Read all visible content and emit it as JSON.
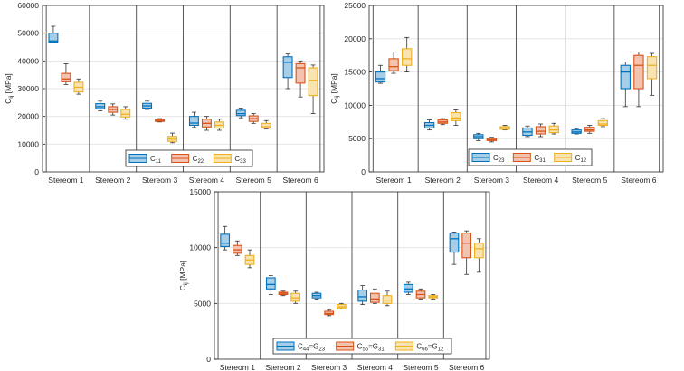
{
  "colors": {
    "blue": "#0072BD",
    "orange": "#D95319",
    "yellow": "#EDB120",
    "axis": "#262626",
    "grid": "#e6e6e6",
    "divider": "#595959"
  },
  "chart_data": [
    {
      "type": "box",
      "ylabel": "C_ij [MPa]",
      "ylim": [
        0,
        60000
      ],
      "yticks": [
        0,
        10000,
        20000,
        30000,
        40000,
        50000,
        60000
      ],
      "categories": [
        "Stereom 1",
        "Stereom 2",
        "Stereom 3",
        "Stereom 4",
        "Stereom 5",
        "Stereom 6"
      ],
      "grid": "horizontal",
      "legend_placement": "bottom-center",
      "series": [
        {
          "name": "C11",
          "label_base": "C",
          "label_sub": "11",
          "color": "#0072BD",
          "boxes": [
            {
              "min": 46500,
              "q1": 46800,
              "median": 47200,
              "q3": 50000,
              "max": 52500
            },
            {
              "min": 22000,
              "q1": 22800,
              "median": 23500,
              "q3": 24600,
              "max": 25500
            },
            {
              "min": 22500,
              "q1": 23000,
              "median": 23800,
              "q3": 24700,
              "max": 25500
            },
            {
              "min": 16000,
              "q1": 16800,
              "median": 17600,
              "q3": 20000,
              "max": 21500
            },
            {
              "min": 19500,
              "q1": 20300,
              "median": 21000,
              "q3": 22200,
              "max": 23000
            },
            {
              "min": 30000,
              "q1": 34000,
              "median": 39500,
              "q3": 41500,
              "max": 42500
            }
          ]
        },
        {
          "name": "C22",
          "label_base": "C",
          "label_sub": "22",
          "color": "#D95319",
          "boxes": [
            {
              "min": 31500,
              "q1": 32500,
              "median": 33500,
              "q3": 35500,
              "max": 39000
            },
            {
              "min": 20500,
              "q1": 21500,
              "median": 22500,
              "q3": 23500,
              "max": 24500
            },
            {
              "min": 18000,
              "q1": 18200,
              "median": 18500,
              "q3": 18900,
              "max": 19200
            },
            {
              "min": 15000,
              "q1": 16200,
              "median": 17500,
              "q3": 19000,
              "max": 20000
            },
            {
              "min": 17500,
              "q1": 18200,
              "median": 19200,
              "q3": 20200,
              "max": 21000
            },
            {
              "min": 27000,
              "q1": 32000,
              "median": 37500,
              "q3": 39000,
              "max": 40000
            }
          ]
        },
        {
          "name": "C33",
          "label_base": "C",
          "label_sub": "33",
          "color": "#EDB120",
          "boxes": [
            {
              "min": 28000,
              "q1": 28800,
              "median": 30500,
              "q3": 32300,
              "max": 33500
            },
            {
              "min": 19000,
              "q1": 19800,
              "median": 20800,
              "q3": 22500,
              "max": 23500
            },
            {
              "min": 10500,
              "q1": 11000,
              "median": 11800,
              "q3": 12800,
              "max": 14000
            },
            {
              "min": 15000,
              "q1": 15800,
              "median": 16800,
              "q3": 18000,
              "max": 19000
            },
            {
              "min": 15500,
              "q1": 15800,
              "median": 16300,
              "q3": 17500,
              "max": 18500
            },
            {
              "min": 21000,
              "q1": 27500,
              "median": 33000,
              "q3": 37500,
              "max": 38500
            }
          ]
        }
      ]
    },
    {
      "type": "box",
      "ylabel": "C_ij [MPa]",
      "ylim": [
        0,
        25000
      ],
      "yticks": [
        0,
        5000,
        10000,
        15000,
        20000,
        25000
      ],
      "categories": [
        "Stereom 1",
        "Stereom 2",
        "Stereom 3",
        "Stereom 4",
        "Stereom 5",
        "Stereom 6"
      ],
      "grid": "horizontal",
      "legend_placement": "bottom-center",
      "series": [
        {
          "name": "C23",
          "label_base": "C",
          "label_sub": "23",
          "color": "#0072BD",
          "boxes": [
            {
              "min": 13300,
              "q1": 13500,
              "median": 14000,
              "q3": 15000,
              "max": 16000
            },
            {
              "min": 6300,
              "q1": 6600,
              "median": 7000,
              "q3": 7400,
              "max": 7800
            },
            {
              "min": 4700,
              "q1": 5000,
              "median": 5300,
              "q3": 5600,
              "max": 5800
            },
            {
              "min": 5300,
              "q1": 5500,
              "median": 6000,
              "q3": 6600,
              "max": 6900
            },
            {
              "min": 5700,
              "q1": 5800,
              "median": 6000,
              "q3": 6300,
              "max": 6500
            },
            {
              "min": 9800,
              "q1": 12500,
              "median": 15000,
              "q3": 16000,
              "max": 16500
            }
          ]
        },
        {
          "name": "C31",
          "label_base": "C",
          "label_sub": "31",
          "color": "#D95319",
          "boxes": [
            {
              "min": 14800,
              "q1": 15200,
              "median": 15800,
              "q3": 17000,
              "max": 18000
            },
            {
              "min": 7100,
              "q1": 7300,
              "median": 7500,
              "q3": 7800,
              "max": 8000
            },
            {
              "min": 4500,
              "q1": 4700,
              "median": 4800,
              "q3": 5000,
              "max": 5200
            },
            {
              "min": 5300,
              "q1": 5700,
              "median": 6100,
              "q3": 6800,
              "max": 7200
            },
            {
              "min": 5800,
              "q1": 6100,
              "median": 6300,
              "q3": 6700,
              "max": 7000
            },
            {
              "min": 9800,
              "q1": 12500,
              "median": 16000,
              "q3": 17500,
              "max": 18000
            }
          ]
        },
        {
          "name": "C12",
          "label_base": "C",
          "label_sub": "12",
          "color": "#EDB120",
          "boxes": [
            {
              "min": 15000,
              "q1": 16000,
              "median": 17000,
              "q3": 18500,
              "max": 20200
            },
            {
              "min": 7000,
              "q1": 7700,
              "median": 8100,
              "q3": 8900,
              "max": 9300
            },
            {
              "min": 6300,
              "q1": 6400,
              "median": 6600,
              "q3": 6800,
              "max": 7000
            },
            {
              "min": 5700,
              "q1": 5900,
              "median": 6300,
              "q3": 6900,
              "max": 7300
            },
            {
              "min": 6800,
              "q1": 7000,
              "median": 7200,
              "q3": 7700,
              "max": 8000
            },
            {
              "min": 11500,
              "q1": 14000,
              "median": 16000,
              "q3": 17300,
              "max": 17800
            }
          ]
        }
      ]
    },
    {
      "type": "box",
      "ylabel": "C_ij [MPa]",
      "ylim": [
        0,
        15000
      ],
      "yticks": [
        0,
        5000,
        10000,
        15000
      ],
      "categories": [
        "Stereom 1",
        "Stereom 2",
        "Stereom 3",
        "Stereom 4",
        "Stereom 5",
        "Stereom 6"
      ],
      "grid": "horizontal",
      "legend_placement": "bottom-center",
      "series": [
        {
          "name": "C44=G23",
          "label_base": "C",
          "label_sub": "44",
          "label_eq": "G",
          "label_eq_sub": "23",
          "color": "#0072BD",
          "boxes": [
            {
              "min": 9800,
              "q1": 10100,
              "median": 10400,
              "q3": 11200,
              "max": 11900
            },
            {
              "min": 5800,
              "q1": 6300,
              "median": 6700,
              "q3": 7300,
              "max": 7500
            },
            {
              "min": 5400,
              "q1": 5500,
              "median": 5700,
              "q3": 5900,
              "max": 6000
            },
            {
              "min": 4900,
              "q1": 5200,
              "median": 5600,
              "q3": 6200,
              "max": 6600
            },
            {
              "min": 5800,
              "q1": 6000,
              "median": 6300,
              "q3": 6700,
              "max": 6900
            },
            {
              "min": 8500,
              "q1": 9600,
              "median": 10800,
              "q3": 11300,
              "max": 11400
            }
          ]
        },
        {
          "name": "C55=G31",
          "label_base": "C",
          "label_sub": "55",
          "label_eq": "G",
          "label_eq_sub": "31",
          "color": "#D95319",
          "boxes": [
            {
              "min": 9300,
              "q1": 9500,
              "median": 9800,
              "q3": 10200,
              "max": 10600
            },
            {
              "min": 5700,
              "q1": 5800,
              "median": 5900,
              "q3": 6000,
              "max": 6100
            },
            {
              "min": 3900,
              "q1": 4000,
              "median": 4100,
              "q3": 4300,
              "max": 4400
            },
            {
              "min": 5000,
              "q1": 5100,
              "median": 5400,
              "q3": 5900,
              "max": 6300
            },
            {
              "min": 5400,
              "q1": 5500,
              "median": 5800,
              "q3": 6100,
              "max": 6300
            },
            {
              "min": 7600,
              "q1": 9100,
              "median": 10400,
              "q3": 11300,
              "max": 11500
            }
          ]
        },
        {
          "name": "C66=G12",
          "label_base": "C",
          "label_sub": "66",
          "label_eq": "G",
          "label_eq_sub": "12",
          "color": "#EDB120",
          "boxes": [
            {
              "min": 8200,
              "q1": 8500,
              "median": 8900,
              "q3": 9300,
              "max": 9800
            },
            {
              "min": 5000,
              "q1": 5200,
              "median": 5500,
              "q3": 5900,
              "max": 6100
            },
            {
              "min": 4500,
              "q1": 4600,
              "median": 4700,
              "q3": 4900,
              "max": 5000
            },
            {
              "min": 4800,
              "q1": 5000,
              "median": 5300,
              "q3": 5700,
              "max": 6100
            },
            {
              "min": 5400,
              "q1": 5500,
              "median": 5600,
              "q3": 5700,
              "max": 5800
            },
            {
              "min": 7800,
              "q1": 9100,
              "median": 9900,
              "q3": 10400,
              "max": 10800
            }
          ]
        }
      ]
    }
  ]
}
